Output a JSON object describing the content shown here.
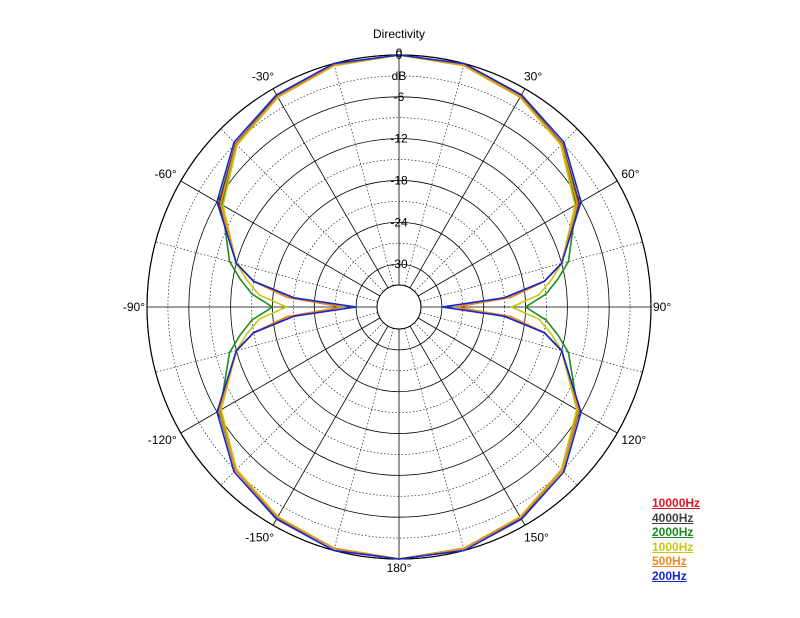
{
  "chart_data": {
    "type": "polar",
    "title": "Directivity",
    "unit_label": "dB",
    "radial_ticks": [
      "0",
      "-6",
      "-12",
      "-18",
      "-24",
      "-30"
    ],
    "radial_tick_values": [
      0,
      -6,
      -12,
      -18,
      -24,
      -30
    ],
    "radial_range": [
      -33,
      0
    ],
    "angle_grid_step_deg": 15,
    "angle_labels": [
      {
        "angle": 0,
        "text": "0"
      },
      {
        "angle": 30,
        "text": "30°"
      },
      {
        "angle": 60,
        "text": "60°"
      },
      {
        "angle": 90,
        "text": "90°"
      },
      {
        "angle": 120,
        "text": "120°"
      },
      {
        "angle": 150,
        "text": "150°"
      },
      {
        "angle": 180,
        "text": "180°"
      },
      {
        "angle": -150,
        "text": "-150°"
      },
      {
        "angle": -120,
        "text": "-120°"
      },
      {
        "angle": -90,
        "text": "-90°"
      },
      {
        "angle": -60,
        "text": "-60°"
      },
      {
        "angle": -30,
        "text": "-30°"
      }
    ],
    "angles": [
      0,
      15,
      30,
      45,
      60,
      75,
      80,
      85,
      90,
      95,
      100,
      105,
      120,
      135,
      150,
      165,
      180
    ],
    "legend_position": "bottom-right",
    "series": [
      {
        "name": "10000Hz",
        "color": "#e8141e",
        "values": [
          0,
          -0.2,
          -1.3,
          -3,
          -6.4,
          -12,
          -15,
          -20,
          -28,
          -20,
          -15,
          -12,
          -6.4,
          -3,
          -1.3,
          -0.3,
          0
        ]
      },
      {
        "name": "4000Hz",
        "color": "#404040",
        "values": [
          0,
          -0.2,
          -1.2,
          -3,
          -6.3,
          -12,
          -15,
          -21,
          -28,
          -21,
          -15,
          -12,
          -6.3,
          -3,
          -1.2,
          -0.3,
          0
        ]
      },
      {
        "name": "2000Hz",
        "color": "#1e8c1e",
        "values": [
          0,
          -0.3,
          -1.4,
          -3.2,
          -6.8,
          -11,
          -13,
          -15,
          -18,
          -15,
          -13,
          -11,
          -6.5,
          -3.1,
          -1.3,
          -0.3,
          0
        ]
      },
      {
        "name": "1000Hz",
        "color": "#c8c814",
        "values": [
          0,
          -0.3,
          -1.4,
          -3.3,
          -7.0,
          -12,
          -14,
          -16,
          -20,
          -16,
          -14,
          -12,
          -6.7,
          -3.2,
          -1.4,
          -0.3,
          0
        ]
      },
      {
        "name": "500Hz",
        "color": "#f08a1e",
        "values": [
          0,
          -0.2,
          -1.3,
          -3.1,
          -6.6,
          -12,
          -15,
          -20,
          -28,
          -20,
          -15,
          -12,
          -6.4,
          -3,
          -1.3,
          -0.3,
          0
        ]
      },
      {
        "name": "200Hz",
        "color": "#1428c8",
        "values": [
          0,
          0,
          -1.0,
          -2.7,
          -6.0,
          -12,
          -15,
          -21,
          -30,
          -21,
          -15,
          -12,
          -6.0,
          -2.7,
          -1.0,
          0,
          0
        ]
      }
    ]
  }
}
